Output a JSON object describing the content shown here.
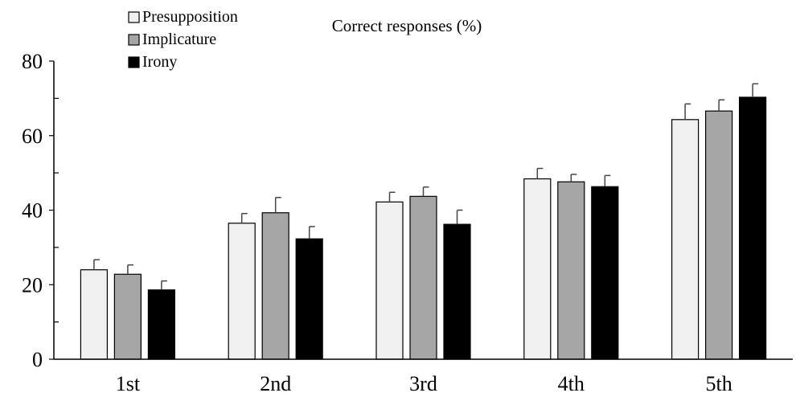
{
  "chart_data": {
    "type": "bar",
    "title": "Correct responses (%)",
    "categories": [
      "1st",
      "2nd",
      "3rd",
      "4th",
      "5th"
    ],
    "series": [
      {
        "name": "Presupposition",
        "color": "#f0f0f0",
        "values": [
          24.0,
          36.5,
          42.2,
          48.4,
          64.3
        ],
        "errors": [
          2.7,
          2.6,
          2.6,
          2.8,
          4.2
        ]
      },
      {
        "name": "Implicature",
        "color": "#a6a6a6",
        "values": [
          22.8,
          39.3,
          43.7,
          47.6,
          66.6
        ],
        "errors": [
          2.5,
          4.1,
          2.5,
          2.0,
          3.0
        ]
      },
      {
        "name": "Irony",
        "color": "#000000",
        "values": [
          18.6,
          32.3,
          36.2,
          46.3,
          70.3
        ],
        "errors": [
          2.4,
          3.3,
          3.8,
          3.0,
          3.6
        ]
      }
    ],
    "ylim": [
      0,
      80
    ],
    "yticks": [
      0,
      20,
      40,
      60,
      80
    ],
    "y_minor_step": 10,
    "xlabel": "",
    "ylabel": "",
    "legend_position": "top-left",
    "grid": false
  }
}
